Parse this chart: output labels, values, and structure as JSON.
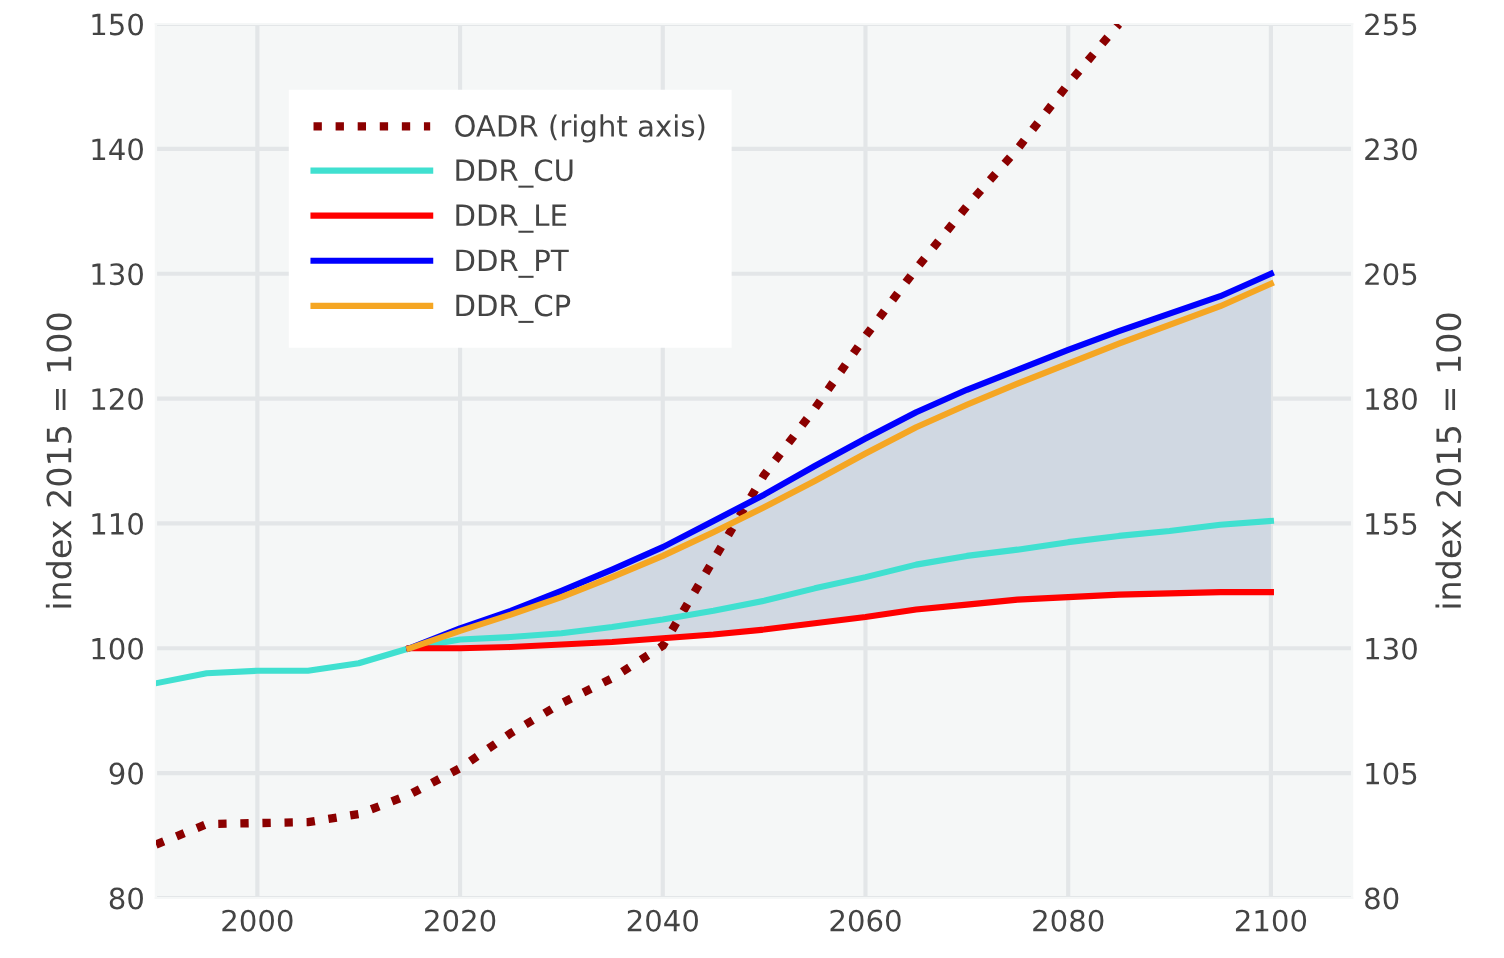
{
  "chart_data": {
    "type": "line",
    "ylabel": "index 2015 = 100",
    "y2label": "index 2015 = 100",
    "x": [
      1990,
      1995,
      2000,
      2005,
      2010,
      2015,
      2020,
      2025,
      2030,
      2035,
      2040,
      2045,
      2050,
      2055,
      2060,
      2065,
      2070,
      2075,
      2080,
      2085,
      2090,
      2095,
      2100
    ],
    "xlim": [
      1990,
      2108
    ],
    "xticks": [
      2000,
      2020,
      2040,
      2060,
      2080,
      2100
    ],
    "ylim": [
      80,
      150
    ],
    "yticks": [
      80,
      90,
      100,
      110,
      120,
      130,
      140,
      150
    ],
    "y2lim": [
      80,
      255
    ],
    "y2ticks": [
      80,
      105,
      130,
      155,
      180,
      205,
      230,
      255
    ],
    "grid": true,
    "legend": "top left",
    "series": [
      {
        "name": "OADR (right axis)",
        "color": "#8b0000",
        "axis": "y2",
        "line_style": "dotted",
        "values": [
          90.7,
          94.8,
          95.0,
          95.2,
          96.8,
          100.7,
          106,
          113,
          119,
          124,
          130.5,
          147.7,
          164.7,
          178,
          192.5,
          206,
          218.5,
          230,
          243,
          255,
          null,
          null,
          null
        ]
      },
      {
        "name": "DDR_CU",
        "color": "#40e0d0",
        "line_style": "solid",
        "values": [
          97.2,
          98.0,
          98.2,
          98.2,
          98.8,
          100,
          100.7,
          100.9,
          101.2,
          101.7,
          102.3,
          103.0,
          103.8,
          104.8,
          105.7,
          106.7,
          107.4,
          107.9,
          108.5,
          109.0,
          109.4,
          109.9,
          110.2
        ]
      },
      {
        "name": "DDR_LE",
        "color": "#ff0000",
        "line_style": "solid",
        "values": [
          null,
          null,
          null,
          null,
          null,
          100,
          100.0,
          100.1,
          100.3,
          100.5,
          100.8,
          101.1,
          101.5,
          102.0,
          102.5,
          103.1,
          103.5,
          103.9,
          104.1,
          104.3,
          104.4,
          104.5,
          104.5
        ]
      },
      {
        "name": "DDR_PT",
        "color": "#0000ff",
        "line_style": "solid",
        "values": [
          null,
          null,
          null,
          null,
          null,
          100,
          101.6,
          103.0,
          104.6,
          106.3,
          108.1,
          110.2,
          112.3,
          114.6,
          116.8,
          118.9,
          120.7,
          122.3,
          123.9,
          125.4,
          126.8,
          128.2,
          130.0
        ],
        "lower": [
          null,
          null,
          null,
          null,
          null,
          100,
          100.0,
          100.1,
          100.3,
          100.5,
          100.8,
          101.1,
          101.5,
          102.0,
          102.5,
          103.1,
          103.5,
          103.9,
          104.1,
          104.3,
          104.4,
          104.5,
          104.5
        ],
        "upper": [
          null,
          null,
          null,
          null,
          null,
          100,
          101.6,
          103.0,
          104.6,
          106.3,
          108.1,
          110.2,
          112.3,
          114.6,
          116.8,
          118.9,
          120.7,
          122.3,
          123.9,
          125.4,
          126.8,
          128.2,
          130.0
        ]
      },
      {
        "name": "DDR_CP",
        "color": "#f5a623",
        "line_style": "solid",
        "values": [
          null,
          null,
          null,
          null,
          null,
          100,
          101.4,
          102.7,
          104.1,
          105.7,
          107.4,
          109.3,
          111.3,
          113.4,
          115.6,
          117.7,
          119.5,
          121.2,
          122.8,
          124.4,
          125.9,
          127.4,
          129.2
        ]
      }
    ]
  }
}
